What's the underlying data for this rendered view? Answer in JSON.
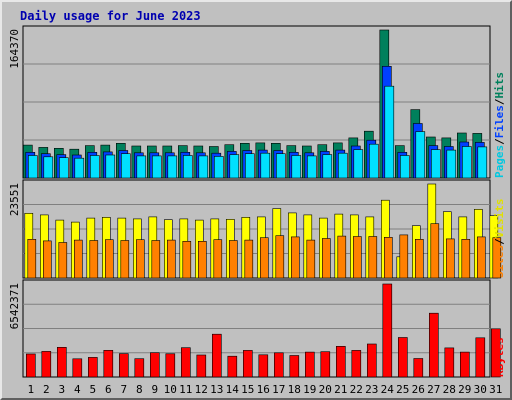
{
  "title": "Daily usage for June 2023",
  "colors": {
    "hits": "#00805c",
    "files": "#0040ff",
    "pages": "#00e0ff",
    "visits": "#ffff00",
    "sites": "#ff8000",
    "kbytes": "#ff0000",
    "weekday": "#000000",
    "weekend": "#00805c"
  },
  "legends": {
    "top": [
      {
        "text": "Pages",
        "color": "#00c8e0"
      },
      {
        "text": "/",
        "color": "#000000"
      },
      {
        "text": "Files",
        "color": "#0040ff"
      },
      {
        "text": "/",
        "color": "#000000"
      },
      {
        "text": "Hits",
        "color": "#00805c"
      }
    ],
    "middle": [
      {
        "text": "Sites",
        "color": "#ff8000"
      },
      {
        "text": "/",
        "color": "#000000"
      },
      {
        "text": "Visits",
        "color": "#e0e000"
      }
    ],
    "bottom": [
      {
        "text": "KBytes",
        "color": "#ff0000"
      }
    ]
  },
  "chart_data": [
    {
      "type": "bar",
      "y_axis_label": "164370",
      "ylim": [
        0,
        164370
      ],
      "categories": [
        "1",
        "2",
        "3",
        "4",
        "5",
        "6",
        "7",
        "8",
        "9",
        "10",
        "11",
        "12",
        "13",
        "14",
        "15",
        "16",
        "17",
        "18",
        "19",
        "20",
        "21",
        "22",
        "23",
        "24",
        "25",
        "26",
        "27",
        "28",
        "29",
        "30",
        "31"
      ],
      "series": [
        {
          "name": "Hits",
          "values": [
            36500,
            34000,
            33000,
            32000,
            36000,
            36500,
            38500,
            35500,
            35500,
            35500,
            36000,
            35500,
            35000,
            37000,
            38500,
            39000,
            38500,
            36000,
            35500,
            37000,
            39000,
            44500,
            52000,
            164370,
            36000,
            76000,
            45500,
            44500,
            50000,
            49500,
            0
          ]
        },
        {
          "name": "Files",
          "values": [
            28500,
            27000,
            26000,
            25500,
            28500,
            29000,
            30500,
            28000,
            28000,
            28000,
            28500,
            28000,
            27500,
            29500,
            30500,
            31000,
            30500,
            28500,
            28000,
            29500,
            31000,
            35500,
            42000,
            124000,
            28500,
            60500,
            36000,
            35000,
            40000,
            39500,
            0
          ]
        },
        {
          "name": "Pages",
          "values": [
            25000,
            23500,
            22500,
            22000,
            25000,
            25500,
            27000,
            24500,
            24500,
            24500,
            25000,
            24500,
            24000,
            26000,
            27000,
            27500,
            27000,
            25000,
            24500,
            26000,
            27500,
            31500,
            37500,
            102000,
            25000,
            51500,
            31500,
            31000,
            35000,
            34500,
            0
          ]
        }
      ]
    },
    {
      "type": "bar",
      "y_axis_label": "23551",
      "ylim": [
        0,
        23551
      ],
      "categories": [
        "1",
        "2",
        "3",
        "4",
        "5",
        "6",
        "7",
        "8",
        "9",
        "10",
        "11",
        "12",
        "13",
        "14",
        "15",
        "16",
        "17",
        "18",
        "19",
        "20",
        "21",
        "22",
        "23",
        "24",
        "25",
        "26",
        "27",
        "28",
        "29",
        "30",
        "31"
      ],
      "series": [
        {
          "name": "Visits",
          "values": [
            16200,
            15800,
            14500,
            14000,
            15000,
            15200,
            15000,
            14800,
            15300,
            14600,
            14800,
            14500,
            14800,
            14700,
            15200,
            15300,
            17400,
            16300,
            15800,
            15000,
            16000,
            15800,
            15300,
            19500,
            5300,
            13100,
            23551,
            16600,
            15300,
            17200,
            15600
          ]
        },
        {
          "name": "Sites",
          "values": [
            9700,
            9300,
            8900,
            9500,
            9400,
            9600,
            9400,
            9600,
            9400,
            9500,
            9200,
            9200,
            9600,
            9400,
            9500,
            10100,
            10600,
            10300,
            9500,
            9900,
            10500,
            10400,
            10400,
            10200,
            10800,
            9700,
            13600,
            9800,
            9700,
            10300,
            10100
          ]
        }
      ]
    },
    {
      "type": "bar",
      "y_axis_label": "6542371",
      "ylim": [
        0,
        6542371
      ],
      "categories": [
        "1",
        "2",
        "3",
        "4",
        "5",
        "6",
        "7",
        "8",
        "9",
        "10",
        "11",
        "12",
        "13",
        "14",
        "15",
        "16",
        "17",
        "18",
        "19",
        "20",
        "21",
        "22",
        "23",
        "24",
        "25",
        "26",
        "27",
        "28",
        "29",
        "30",
        "31"
      ],
      "series": [
        {
          "name": "KBytes",
          "values": [
            1620000,
            1800000,
            2090000,
            1280000,
            1380000,
            1880000,
            1640000,
            1290000,
            1710000,
            1630000,
            2060000,
            1550000,
            3010000,
            1460000,
            1870000,
            1560000,
            1700000,
            1510000,
            1750000,
            1780000,
            2160000,
            1870000,
            2320000,
            6542371,
            2780000,
            1300000,
            4490000,
            2050000,
            1750000,
            2760000,
            3390000
          ]
        }
      ]
    }
  ]
}
